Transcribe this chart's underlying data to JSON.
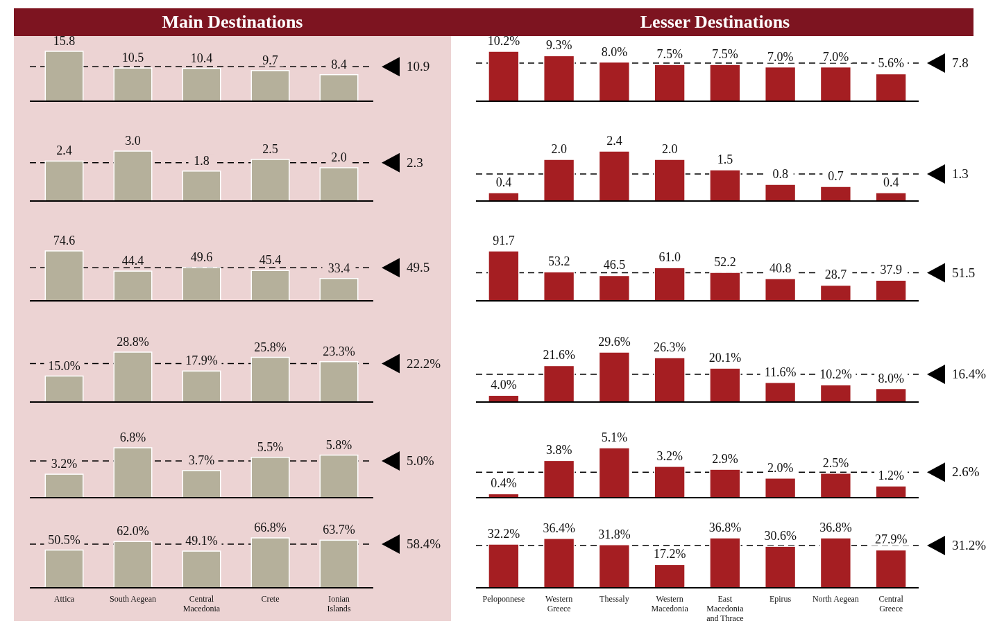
{
  "chart_data": [
    {
      "type": "bar",
      "title": "Main Destinations",
      "categories": [
        null,
        null,
        null,
        null,
        null
      ],
      "values": [
        15.8,
        10.5,
        10.4,
        9.7,
        8.4
      ],
      "value_labels": [
        "15.8",
        "10.5",
        "10.4",
        "9.7",
        "8.4"
      ],
      "color": "#b5b09b",
      "tick_labels": false,
      "ref_lines": [
        {
          "axis": "y",
          "value": 10.9,
          "label": "10.9",
          "line_style": "dashed"
        }
      ]
    },
    {
      "type": "bar",
      "title": "Lesser Destinations",
      "categories": [
        null,
        null,
        null,
        null,
        null,
        null,
        null,
        null
      ],
      "values": [
        10.2,
        9.3,
        8.0,
        7.5,
        7.5,
        7.0,
        7.0,
        5.6
      ],
      "value_labels": [
        "10.2%",
        "9.3%",
        "8.0%",
        "7.5%",
        "7.5%",
        "7.0%",
        "7.0%",
        "5.6%"
      ],
      "color": "#a51e22",
      "tick_labels": false,
      "ref_lines": [
        {
          "axis": "y",
          "value": 7.8,
          "label": "7.8",
          "line_style": "dashed"
        }
      ]
    },
    {
      "type": "bar",
      "categories": [
        null,
        null,
        null,
        null,
        null
      ],
      "values": [
        2.4,
        3.0,
        1.8,
        2.5,
        2.0
      ],
      "value_labels": [
        "2.4",
        "3.0",
        "1.8",
        "2.5",
        "2.0"
      ],
      "color": "#b5b09b",
      "tick_labels": false,
      "ref_lines": [
        {
          "axis": "y",
          "value": 2.3,
          "label": "2.3",
          "line_style": "dashed"
        }
      ]
    },
    {
      "type": "bar",
      "categories": [
        null,
        null,
        null,
        null,
        null,
        null,
        null,
        null
      ],
      "values": [
        0.4,
        2.0,
        2.4,
        2.0,
        1.5,
        0.8,
        0.7,
        0.4
      ],
      "value_labels": [
        "0.4",
        "2.0",
        "2.4",
        "2.0",
        "1.5",
        "0.8",
        "0.7",
        "0.4"
      ],
      "color": "#a51e22",
      "tick_labels": false,
      "ref_lines": [
        {
          "axis": "y",
          "value": 1.3,
          "label": "1.3",
          "line_style": "dashed"
        }
      ]
    },
    {
      "type": "bar",
      "categories": [
        null,
        null,
        null,
        null,
        null
      ],
      "values": [
        74.6,
        44.4,
        49.6,
        45.4,
        33.4
      ],
      "value_labels": [
        "74.6",
        "44.4",
        "49.6",
        "45.4",
        "33.4"
      ],
      "color": "#b5b09b",
      "tick_labels": false,
      "ref_lines": [
        {
          "axis": "y",
          "value": 49.5,
          "label": "49.5",
          "line_style": "dashed"
        }
      ]
    },
    {
      "type": "bar",
      "categories": [
        null,
        null,
        null,
        null,
        null,
        null,
        null,
        null
      ],
      "values": [
        91.7,
        53.2,
        46.5,
        61.0,
        52.2,
        40.8,
        28.7,
        37.9
      ],
      "value_labels": [
        "91.7",
        "53.2",
        "46.5",
        "61.0",
        "52.2",
        "40.8",
        "28.7",
        "37.9"
      ],
      "color": "#a51e22",
      "tick_labels": false,
      "ref_lines": [
        {
          "axis": "y",
          "value": 51.5,
          "label": "51.5",
          "line_style": "dashed"
        }
      ]
    },
    {
      "type": "bar",
      "categories": [
        null,
        null,
        null,
        null,
        null
      ],
      "values": [
        15.0,
        28.8,
        17.9,
        25.8,
        23.3
      ],
      "value_labels": [
        "15.0%",
        "28.8%",
        "17.9%",
        "25.8%",
        "23.3%"
      ],
      "color": "#b5b09b",
      "tick_labels": false,
      "ref_lines": [
        {
          "axis": "y",
          "value": 22.2,
          "label": "22.2%",
          "line_style": "dashed"
        }
      ]
    },
    {
      "type": "bar",
      "categories": [
        null,
        null,
        null,
        null,
        null,
        null,
        null,
        null
      ],
      "values": [
        4.0,
        21.6,
        29.6,
        26.3,
        20.1,
        11.6,
        10.2,
        8.0
      ],
      "value_labels": [
        "4.0%",
        "21.6%",
        "29.6%",
        "26.3%",
        "20.1%",
        "11.6%",
        "10.2%",
        "8.0%"
      ],
      "color": "#a51e22",
      "tick_labels": false,
      "ref_lines": [
        {
          "axis": "y",
          "value": 16.4,
          "label": "16.4%",
          "line_style": "dashed"
        }
      ]
    },
    {
      "type": "bar",
      "categories": [
        null,
        null,
        null,
        null,
        null
      ],
      "values": [
        3.2,
        6.8,
        3.7,
        5.5,
        5.8
      ],
      "value_labels": [
        "3.2%",
        "6.8%",
        "3.7%",
        "5.5%",
        "5.8%"
      ],
      "color": "#b5b09b",
      "tick_labels": false,
      "ref_lines": [
        {
          "axis": "y",
          "value": 5.0,
          "label": "5.0%",
          "line_style": "dashed"
        }
      ]
    },
    {
      "type": "bar",
      "categories": [
        null,
        null,
        null,
        null,
        null,
        null,
        null,
        null
      ],
      "values": [
        0.4,
        3.8,
        5.1,
        3.2,
        2.9,
        2.0,
        2.5,
        1.2
      ],
      "value_labels": [
        "0.4%",
        "3.8%",
        "5.1%",
        "3.2%",
        "2.9%",
        "2.0%",
        "2.5%",
        "1.2%"
      ],
      "color": "#a51e22",
      "tick_labels": false,
      "ref_lines": [
        {
          "axis": "y",
          "value": 2.6,
          "label": "2.6%",
          "line_style": "dashed"
        }
      ]
    },
    {
      "type": "bar",
      "categories": [
        "Attica",
        "South Aegean",
        "Central Macedonia",
        "Crete",
        "Ionian Islands"
      ],
      "values": [
        50.5,
        62.0,
        49.1,
        66.8,
        63.7
      ],
      "value_labels": [
        "50.5%",
        "62.0%",
        "49.1%",
        "66.8%",
        "63.7%"
      ],
      "color": "#b5b09b",
      "tick_labels": "x",
      "ref_lines": [
        {
          "axis": "y",
          "value": 58.4,
          "label": "58.4%",
          "line_style": "dashed"
        }
      ]
    },
    {
      "type": "bar",
      "categories": [
        "Peloponnese",
        "Western Greece",
        "Thessaly",
        "Western Macedonia",
        "East Macedonia and Thrace",
        "Epirus",
        "North Aegean",
        "Central Greece"
      ],
      "values": [
        32.2,
        36.4,
        31.8,
        17.2,
        36.8,
        30.6,
        36.8,
        27.9
      ],
      "value_labels": [
        "32.2%",
        "36.4%",
        "31.8%",
        "17.2%",
        "36.8%",
        "30.6%",
        "36.8%",
        "27.9%"
      ],
      "color": "#a51e22",
      "tick_labels": "x",
      "ref_lines": [
        {
          "axis": "y",
          "value": 31.2,
          "label": "31.2%",
          "line_style": "dashed"
        }
      ]
    }
  ]
}
